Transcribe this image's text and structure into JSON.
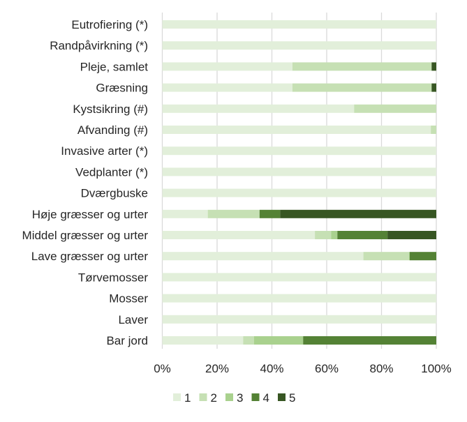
{
  "chart_data": {
    "type": "bar",
    "orientation": "horizontal",
    "stacked": "percent",
    "title": "",
    "xlabel": "",
    "ylabel": "",
    "xlim": [
      0,
      100
    ],
    "x_ticks": [
      "0%",
      "20%",
      "40%",
      "60%",
      "80%",
      "100%"
    ],
    "grid": "vertical",
    "legend_position": "bottom",
    "categories": [
      "Eutrofiering (*)",
      "Randpåvirkning (*)",
      "Pleje, samlet",
      "Græsning",
      "Kystsikring (#)",
      "Afvanding (#)",
      "Invasive arter (*)",
      "Vedplanter (*)",
      "Dværgbuske",
      "Høje græsser og urter",
      "Middel græsser og urter",
      "Lave græsser og urter",
      "Tørvemosser",
      "Mosser",
      "Laver",
      "Bar jord"
    ],
    "series": [
      {
        "name": "1",
        "color": "#e2efda",
        "values": [
          100,
          100,
          47.5,
          47.5,
          70,
          98,
          100,
          100,
          100,
          16.6,
          55.7,
          73.4,
          100,
          100,
          100,
          29.5
        ]
      },
      {
        "name": "2",
        "color": "#c6e0b4",
        "values": [
          0,
          0,
          50.8,
          50.8,
          30,
          2,
          0,
          0,
          0,
          18.9,
          5.9,
          16.6,
          0,
          0,
          0,
          4
        ]
      },
      {
        "name": "3",
        "color": "#a9d18e",
        "values": [
          0,
          0,
          0,
          0,
          0,
          0,
          0,
          0,
          0,
          0,
          2.3,
          0.3,
          0,
          0,
          0,
          17.9
        ]
      },
      {
        "name": "4",
        "color": "#548235",
        "values": [
          0,
          0,
          0,
          0,
          0,
          0,
          0,
          0,
          0,
          7.5,
          18.3,
          9.7,
          0,
          0,
          0,
          48.6
        ]
      },
      {
        "name": "5",
        "color": "#375623",
        "values": [
          0,
          0,
          1.7,
          1.7,
          0,
          0,
          0,
          0,
          0,
          57,
          17.8,
          0,
          0,
          0,
          0,
          0
        ]
      }
    ]
  }
}
